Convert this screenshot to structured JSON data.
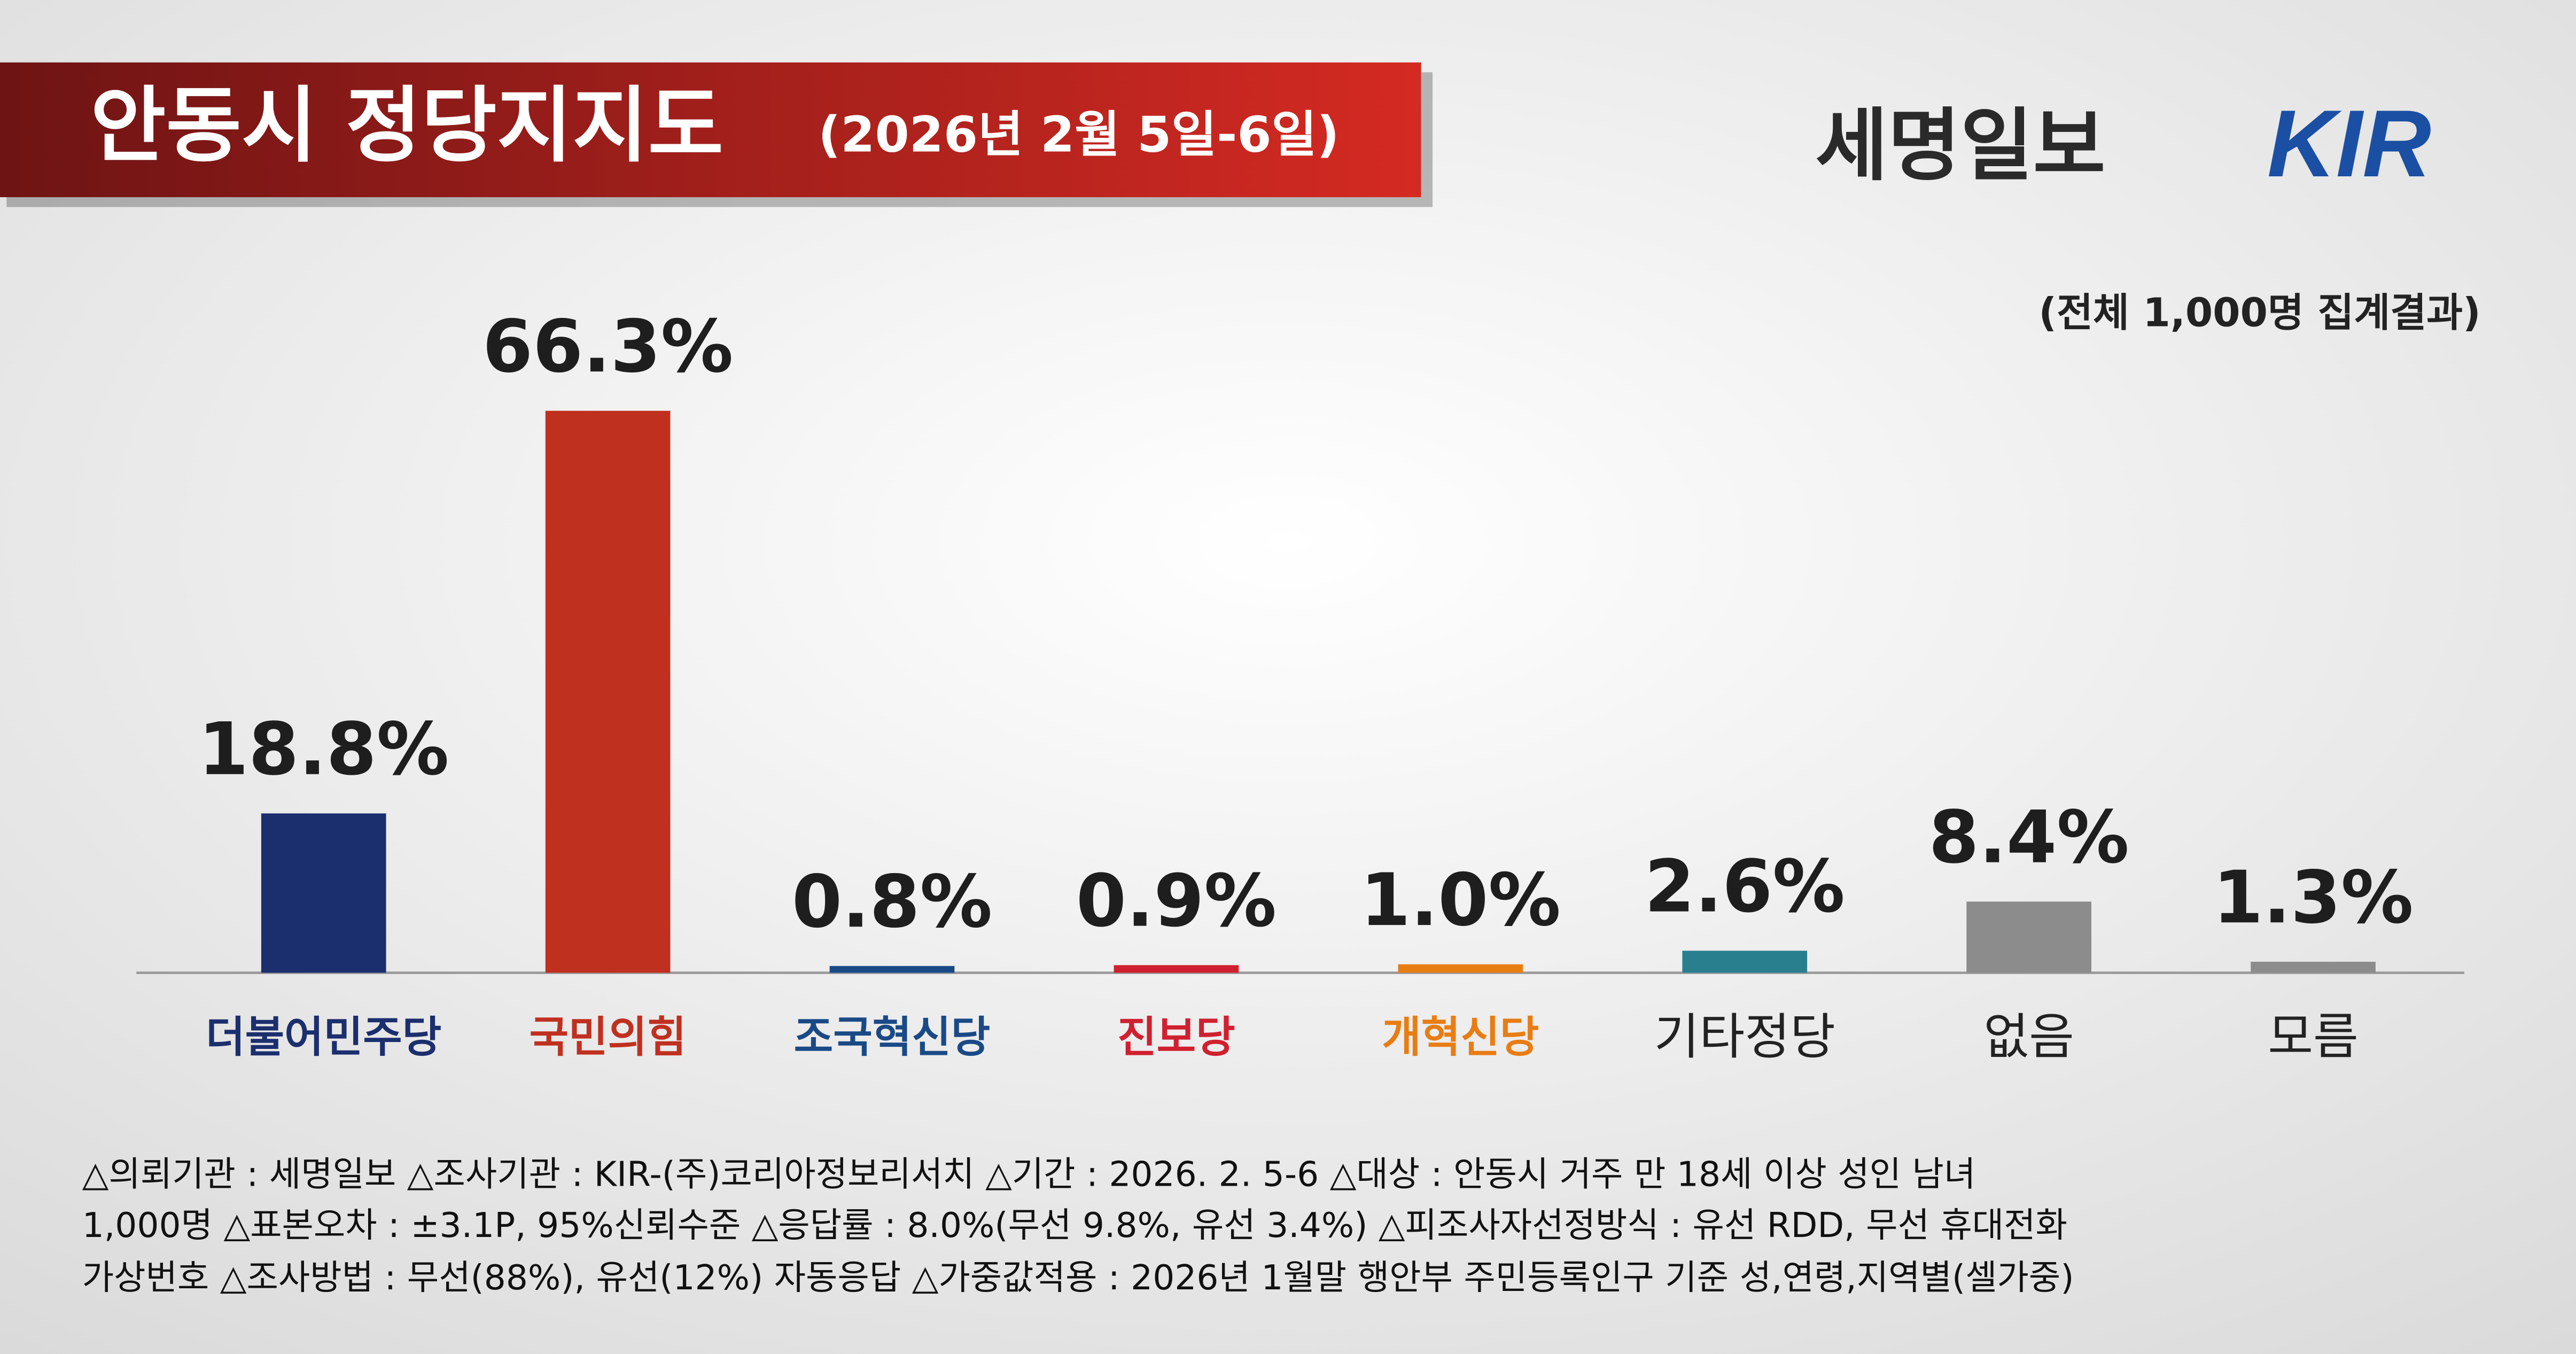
{
  "chart_data": {
    "type": "bar",
    "title": "안동시 정당지지도",
    "subtitle": "(2026년 2월 5일-6일)",
    "brand": "세명일보",
    "logo": "KIR",
    "note": "(전체 1,000명 집계결과)",
    "categories": [
      "더불어민주당",
      "국민의힘",
      "조국혁신당",
      "진보당",
      "개혁신당",
      "기타정당",
      "없음",
      "모름"
    ],
    "values": [
      18.8,
      66.3,
      0.8,
      0.9,
      1.0,
      2.6,
      8.4,
      1.3
    ],
    "value_labels": [
      "18.8%",
      "66.3%",
      "0.8%",
      "0.9%",
      "1.0%",
      "2.6%",
      "8.4%",
      "1.3%"
    ],
    "colors": [
      "#1b2f6e",
      "#c0301f",
      "#1a4a86",
      "#d0202f",
      "#e87d14",
      "#2a7f8f",
      "#8c8c8c",
      "#8c8c8c"
    ],
    "footnote": [
      "△의뢰기관 : 세명일보   △조사기관 : KIR-(주)코리아정보리서치   △기간 : 2026. 2. 5-6   △대상 : 안동시 거주 만 18세  이상 성인 남녀",
      "1,000명   △표본오차 : ±3.1P, 95%신뢰수준   △응답률 : 8.0%(무선 9.8%, 유선 3.4%)   △피조사자선정방식 : 유선 RDD, 무선 휴대전화",
      "가상번호  △조사방법 : 무선(88%), 유선(12%) 자동응답   △가중값적용 : 2026년 1월말 행안부 주민등록인구 기준 성,연령,지역별(셀가중)"
    ]
  }
}
